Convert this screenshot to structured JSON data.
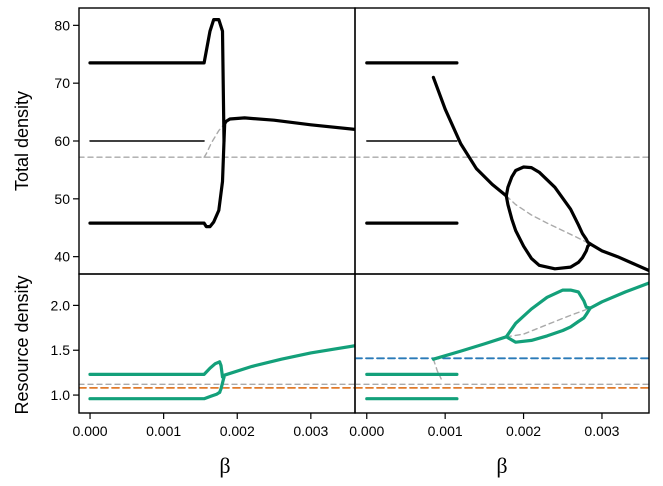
{
  "chart_data": [
    {
      "type": "line",
      "panel": "top-left",
      "ylabel": "Total density",
      "xlabel": "",
      "xlim": [
        -0.00015,
        0.0036
      ],
      "ylim": [
        37,
        83
      ],
      "yticks": [
        "40",
        "50",
        "60",
        "70",
        "80"
      ],
      "series": [
        {
          "role": "thick-solid",
          "color": "#000000",
          "x": [
            0,
            0.00155,
            0.00163,
            0.00168,
            0.00175,
            0.0018,
            0.00182,
            0.00183,
            0.00185,
            0.0019,
            0.0021,
            0.0025,
            0.003,
            0.0036
          ],
          "y": [
            73.5,
            73.5,
            79,
            81,
            81,
            79,
            60,
            63,
            63.4,
            63.8,
            64,
            63.6,
            62.8,
            62
          ]
        },
        {
          "role": "thick-solid",
          "color": "#000000",
          "x": [
            0,
            0.00155,
            0.00158,
            0.00163,
            0.00168,
            0.00175,
            0.0018,
            0.00182
          ],
          "y": [
            45.8,
            45.8,
            45.2,
            45.2,
            46,
            48,
            53,
            60
          ]
        },
        {
          "role": "thin-solid",
          "color": "#000000",
          "x": [
            0,
            0.00155
          ],
          "y": [
            60,
            60
          ]
        },
        {
          "role": "gray-dashed",
          "color": "#aaaaaa",
          "x": [
            -0.00015,
            0.0036
          ],
          "y": [
            57.2,
            57.2
          ]
        },
        {
          "role": "gray-dashed",
          "color": "#aaaaaa",
          "x": [
            0.00155,
            0.00158,
            0.00165,
            0.00175,
            0.00183
          ],
          "y": [
            57.2,
            57.8,
            59.7,
            61.8,
            63
          ]
        }
      ]
    },
    {
      "type": "line",
      "panel": "top-right",
      "xlabel": "",
      "xlim": [
        -0.00015,
        0.0036
      ],
      "ylim": [
        37,
        83
      ],
      "series": [
        {
          "role": "thick-solid",
          "color": "#000000",
          "x": [
            0,
            0.00115
          ],
          "y": [
            73.5,
            73.5
          ]
        },
        {
          "role": "thick-solid",
          "color": "#000000",
          "x": [
            0,
            0.00115
          ],
          "y": [
            45.8,
            45.8
          ]
        },
        {
          "role": "thin-solid",
          "color": "#000000",
          "x": [
            0,
            0.00115
          ],
          "y": [
            60,
            60
          ]
        },
        {
          "role": "thick-solid",
          "color": "#000000",
          "x": [
            0.00085,
            0.001,
            0.0012,
            0.0014,
            0.0016,
            0.00178
          ],
          "y": [
            71,
            65.5,
            59.5,
            55.2,
            52.5,
            50.5
          ]
        },
        {
          "role": "thick-solid",
          "color": "#000000",
          "x": [
            0.00178,
            0.0018,
            0.00185,
            0.0019,
            0.002,
            0.0021,
            0.0022,
            0.0024,
            0.0026,
            0.0027,
            0.00275,
            0.0028,
            0.00282,
            0.00285
          ],
          "y": [
            50.5,
            52,
            53.8,
            54.9,
            55.5,
            55.4,
            54.6,
            52,
            48.2,
            45.5,
            44,
            43,
            42.5,
            42.2
          ]
        },
        {
          "role": "thick-solid",
          "color": "#000000",
          "x": [
            0.00178,
            0.0018,
            0.00185,
            0.0019,
            0.002,
            0.0021,
            0.0022,
            0.0024,
            0.0026,
            0.0027,
            0.00275,
            0.0028,
            0.00282,
            0.00285
          ],
          "y": [
            50.5,
            49,
            46.5,
            44.5,
            41.8,
            39.7,
            38.5,
            37.9,
            38.2,
            39,
            39.8,
            41,
            41.8,
            42.2
          ]
        },
        {
          "role": "thick-solid",
          "color": "#000000",
          "x": [
            0.00285,
            0.003,
            0.0032,
            0.0034,
            0.0036
          ],
          "y": [
            42.2,
            41,
            40,
            38.8,
            37.6
          ]
        },
        {
          "role": "gray-dashed",
          "color": "#aaaaaa",
          "x": [
            -0.00015,
            0.0036
          ],
          "y": [
            57.2,
            57.2
          ]
        },
        {
          "role": "gray-dashed",
          "color": "#aaaaaa",
          "x": [
            0.00178,
            0.0019,
            0.0021,
            0.0023,
            0.0025,
            0.0027,
            0.00285
          ],
          "y": [
            50.5,
            49,
            47.2,
            45.8,
            44.5,
            43.2,
            42.2
          ]
        }
      ]
    },
    {
      "type": "line",
      "panel": "bottom-left",
      "ylabel": "Resource density",
      "xlabel": "β",
      "xlim": [
        -0.00015,
        0.0036
      ],
      "ylim": [
        0.8,
        2.35
      ],
      "yticks": [
        "1.0",
        "1.5",
        "2.0"
      ],
      "xticks": [
        "0.000",
        "0.001",
        "0.002",
        "0.003"
      ],
      "series": [
        {
          "role": "thick-solid",
          "color": "#13a07a",
          "x": [
            0,
            0.00155,
            0.00163,
            0.0017,
            0.00176
          ],
          "y": [
            1.23,
            1.23,
            1.3,
            1.35,
            1.37
          ]
        },
        {
          "role": "thick-solid",
          "color": "#13a07a",
          "x": [
            0,
            0.00155,
            0.00165,
            0.00172,
            0.00176
          ],
          "y": [
            0.96,
            0.96,
            0.99,
            1.01,
            1.03
          ]
        },
        {
          "role": "thick-solid",
          "color": "#13a07a",
          "x": [
            0.00176,
            0.00178,
            0.0018,
            0.00182
          ],
          "y": [
            1.37,
            1.33,
            1.2,
            1.2
          ]
        },
        {
          "role": "thick-solid",
          "color": "#13a07a",
          "x": [
            0.00176,
            0.00178,
            0.00182
          ],
          "y": [
            1.03,
            1.07,
            1.2
          ]
        },
        {
          "role": "thick-solid",
          "color": "#13a07a",
          "x": [
            0.00182,
            0.0022,
            0.0026,
            0.003,
            0.0033,
            0.0036
          ],
          "y": [
            1.22,
            1.32,
            1.4,
            1.47,
            1.51,
            1.55
          ]
        },
        {
          "role": "orange-dashed",
          "color": "#e07b2c",
          "x": [
            -0.00015,
            0.0036
          ],
          "y": [
            1.08,
            1.08
          ]
        },
        {
          "role": "gray-dashed",
          "color": "#aaaaaa",
          "x": [
            -0.00015,
            0.0036
          ],
          "y": [
            1.12,
            1.12
          ]
        }
      ]
    },
    {
      "type": "line",
      "panel": "bottom-right",
      "xlabel": "β",
      "xlim": [
        -0.00015,
        0.0036
      ],
      "ylim": [
        0.8,
        2.35
      ],
      "xticks": [
        "0.000",
        "0.001",
        "0.002",
        "0.003"
      ],
      "series": [
        {
          "role": "thick-solid",
          "color": "#13a07a",
          "x": [
            0,
            0.00115
          ],
          "y": [
            1.23,
            1.23
          ]
        },
        {
          "role": "thick-solid",
          "color": "#13a07a",
          "x": [
            0,
            0.00115
          ],
          "y": [
            0.96,
            0.96
          ]
        },
        {
          "role": "thick-solid",
          "color": "#13a07a",
          "x": [
            0.00085,
            0.0012,
            0.0015,
            0.00178
          ],
          "y": [
            1.4,
            1.49,
            1.57,
            1.65
          ]
        },
        {
          "role": "thick-solid",
          "color": "#13a07a",
          "x": [
            0.00178,
            0.0019,
            0.0021,
            0.0023,
            0.0025,
            0.0026,
            0.0027,
            0.00277,
            0.0028,
            0.00285
          ],
          "y": [
            1.65,
            1.8,
            1.96,
            2.09,
            2.17,
            2.17,
            2.15,
            2.05,
            1.98,
            1.97
          ]
        },
        {
          "role": "thick-solid",
          "color": "#13a07a",
          "x": [
            0.00178,
            0.0019,
            0.0021,
            0.0023,
            0.0025,
            0.0026,
            0.0027,
            0.00277,
            0.0028,
            0.00285
          ],
          "y": [
            1.65,
            1.59,
            1.61,
            1.66,
            1.72,
            1.76,
            1.82,
            1.86,
            1.9,
            1.97
          ]
        },
        {
          "role": "thick-solid",
          "color": "#13a07a",
          "x": [
            0.00285,
            0.003,
            0.0033,
            0.0036
          ],
          "y": [
            1.97,
            2.04,
            2.15,
            2.25
          ]
        },
        {
          "role": "blue-dashed",
          "color": "#2a7ab8",
          "x": [
            -0.00015,
            0.0036
          ],
          "y": [
            1.41,
            1.41
          ]
        },
        {
          "role": "orange-dashed",
          "color": "#e07b2c",
          "x": [
            -0.00015,
            0.0036
          ],
          "y": [
            1.08,
            1.08
          ]
        },
        {
          "role": "gray-dashed",
          "color": "#aaaaaa",
          "x": [
            -0.00015,
            0.0036
          ],
          "y": [
            1.12,
            1.12
          ]
        },
        {
          "role": "gray-dashed",
          "color": "#aaaaaa",
          "x": [
            0.00085,
            0.0009,
            0.00095
          ],
          "y": [
            1.4,
            1.27,
            1.18
          ]
        },
        {
          "role": "gray-dashed",
          "color": "#aaaaaa",
          "x": [
            0.00178,
            0.002,
            0.0022,
            0.0024,
            0.0026,
            0.00285
          ],
          "y": [
            1.65,
            1.68,
            1.75,
            1.82,
            1.89,
            1.97
          ]
        }
      ]
    }
  ],
  "labels": {
    "top_ylabel": "Total density",
    "bottom_ylabel": "Resource density",
    "xlabel_left": "β",
    "xlabel_right": "β"
  }
}
